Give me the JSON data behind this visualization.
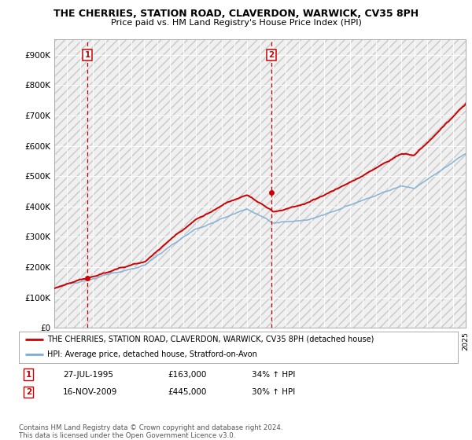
{
  "title": "THE CHERRIES, STATION ROAD, CLAVERDON, WARWICK, CV35 8PH",
  "subtitle": "Price paid vs. HM Land Registry's House Price Index (HPI)",
  "ylabel_ticks": [
    "£0",
    "£100K",
    "£200K",
    "£300K",
    "£400K",
    "£500K",
    "£600K",
    "£700K",
    "£800K",
    "£900K"
  ],
  "ytick_values": [
    0,
    100000,
    200000,
    300000,
    400000,
    500000,
    600000,
    700000,
    800000,
    900000
  ],
  "ylim": [
    0,
    950000
  ],
  "xlim_start": 1993,
  "xlim_end": 2025,
  "legend_line1": "THE CHERRIES, STATION ROAD, CLAVERDON, WARWICK, CV35 8PH (detached house)",
  "legend_line2": "HPI: Average price, detached house, Stratford-on-Avon",
  "sale1_date": "27-JUL-1995",
  "sale1_price": 163000,
  "sale1_hpi": "34% ↑ HPI",
  "sale1_x": 1995.57,
  "sale2_date": "16-NOV-2009",
  "sale2_price": 445000,
  "sale2_hpi": "30% ↑ HPI",
  "sale2_x": 2009.88,
  "property_color": "#cc0000",
  "hpi_color": "#7aadd4",
  "annotation_color": "#cc0000",
  "footnote": "Contains HM Land Registry data © Crown copyright and database right 2024.\nThis data is licensed under the Open Government Licence v3.0.",
  "bg_color": "#f0f0f0",
  "hatch_pattern": "///",
  "hatch_color": "#e0e0e0"
}
